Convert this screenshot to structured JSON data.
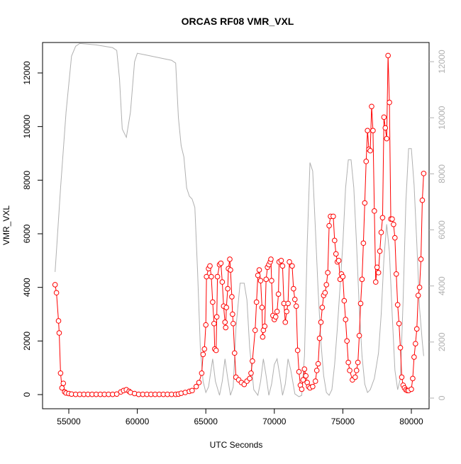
{
  "chart_data": {
    "type": "line",
    "title": "ORCAS RF08 VMR_VXL",
    "x_label": "UTC Seconds",
    "y_label": "VMR_VXL",
    "xlim": [
      53085,
      81294
    ],
    "xticks": [
      55000,
      60000,
      65000,
      70000,
      75000,
      80000
    ],
    "ylim": [
      -528,
      13136
    ],
    "yticks": [
      0,
      2000,
      4000,
      6000,
      8000,
      10000,
      12000
    ],
    "y2lim": [
      -380,
      12684
    ],
    "y2ticks": [
      0,
      2000,
      4000,
      6000,
      8000,
      10000,
      12000
    ],
    "y2_color": "#b0b0b0",
    "series": [
      {
        "color": "#b0b0b0",
        "axis": "y2",
        "markers": false,
        "x": [
          54000,
          54400,
          54800,
          55200,
          55500,
          55800,
          57000,
          58200,
          58500,
          58700,
          58900,
          59200,
          59500,
          59800,
          60000,
          60500,
          61500,
          62500,
          62800,
          63000,
          63200,
          63400,
          63600,
          63800,
          64000,
          64200,
          64400,
          64600,
          64800,
          65000,
          65200,
          65500,
          65700,
          66000,
          66200,
          66400,
          66600,
          66800,
          67000,
          67200,
          67500,
          67800,
          68000,
          68200,
          68500,
          68800,
          69000,
          69200,
          69400,
          69600,
          69800,
          70000,
          70200,
          70400,
          70600,
          70800,
          71000,
          71200,
          71500,
          71800,
          72000,
          72200,
          72400,
          72600,
          72800,
          73000,
          73200,
          73400,
          73600,
          73800,
          74000,
          74200,
          74400,
          74600,
          74800,
          75000,
          75200,
          75400,
          75600,
          75800,
          76000,
          76200,
          76400,
          76600,
          76800,
          77000,
          77300,
          77600,
          77800,
          78000,
          78200,
          78400,
          78600,
          78800,
          79000,
          79200,
          79400,
          79600,
          79800,
          80000,
          80200,
          80400,
          80600,
          80800,
          80900
        ],
        "values": [
          4500,
          7500,
          10200,
          12200,
          12550,
          12650,
          12600,
          12500,
          12400,
          11400,
          9600,
          9300,
          10200,
          12000,
          12300,
          12250,
          12150,
          12050,
          11950,
          10000,
          9000,
          8600,
          7500,
          7200,
          7100,
          6800,
          4500,
          1800,
          600,
          200,
          400,
          1400,
          600,
          100,
          600,
          1400,
          700,
          100,
          400,
          2500,
          4100,
          4100,
          3500,
          1800,
          300,
          100,
          600,
          1400,
          800,
          100,
          500,
          1200,
          1400,
          800,
          100,
          500,
          1400,
          1000,
          150,
          50,
          100,
          1500,
          5500,
          8400,
          8100,
          6000,
          3800,
          2000,
          800,
          200,
          100,
          300,
          1200,
          2500,
          4000,
          5500,
          7500,
          8500,
          8500,
          7500,
          5500,
          3200,
          1500,
          500,
          200,
          300,
          700,
          1600,
          3000,
          5000,
          6200,
          5200,
          3000,
          1000,
          300,
          700,
          3500,
          7000,
          8900,
          8900,
          7600,
          5500,
          3200,
          2000,
          1500
        ]
      },
      {
        "color": "#ff0000",
        "axis": "y",
        "markers": true,
        "x": [
          54000,
          54100,
          54250,
          54300,
          54400,
          54500,
          54600,
          54700,
          54800,
          55000,
          55200,
          55500,
          55800,
          56100,
          56400,
          56700,
          57000,
          57300,
          57600,
          57900,
          58200,
          58500,
          58800,
          59000,
          59200,
          59400,
          59500,
          59800,
          60100,
          60400,
          60700,
          61000,
          61300,
          61600,
          61900,
          62200,
          62500,
          62800,
          63000,
          63200,
          63500,
          63800,
          64000,
          64300,
          64500,
          64700,
          64800,
          64900,
          65000,
          65050,
          65200,
          65300,
          65400,
          65500,
          65600,
          65650,
          65750,
          65800,
          65850,
          66000,
          66100,
          66200,
          66300,
          66400,
          66450,
          66500,
          66600,
          66650,
          66750,
          66800,
          66900,
          66950,
          67000,
          67100,
          67200,
          67400,
          67600,
          67800,
          68000,
          68200,
          68300,
          68400,
          68600,
          68700,
          68800,
          68900,
          69000,
          69100,
          69150,
          69200,
          69300,
          69400,
          69500,
          69600,
          69700,
          69750,
          69800,
          69900,
          70000,
          70100,
          70200,
          70300,
          70350,
          70500,
          70600,
          70700,
          70800,
          70900,
          71000,
          71100,
          71300,
          71400,
          71500,
          71600,
          71700,
          71800,
          71900,
          72000,
          72100,
          72200,
          72300,
          72400,
          72500,
          72600,
          72800,
          73000,
          73100,
          73200,
          73300,
          73400,
          73500,
          73600,
          73700,
          73800,
          73900,
          74000,
          74100,
          74300,
          74400,
          74500,
          74600,
          74700,
          74800,
          74900,
          75000,
          75100,
          75200,
          75300,
          75400,
          75500,
          75700,
          75900,
          76000,
          76100,
          76200,
          76300,
          76400,
          76500,
          76600,
          76700,
          76800,
          76900,
          77000,
          77100,
          77200,
          77300,
          77400,
          77500,
          77600,
          77700,
          77800,
          77900,
          78000,
          78100,
          78200,
          78300,
          78400,
          78500,
          78600,
          78700,
          78800,
          78900,
          79000,
          79100,
          79200,
          79300,
          79400,
          79500,
          79600,
          79700,
          79800,
          80000,
          80100,
          80200,
          80300,
          80400,
          80500,
          80600,
          80700,
          80800,
          80900
        ],
        "values": [
          4100,
          3800,
          2750,
          2300,
          800,
          250,
          420,
          100,
          60,
          40,
          20,
          10,
          10,
          10,
          10,
          10,
          10,
          10,
          10,
          10,
          10,
          20,
          100,
          150,
          180,
          120,
          80,
          40,
          10,
          10,
          10,
          10,
          10,
          10,
          10,
          10,
          10,
          10,
          20,
          50,
          80,
          120,
          150,
          300,
          450,
          800,
          1500,
          1700,
          2600,
          4400,
          4700,
          4800,
          4400,
          3450,
          2650,
          1700,
          1650,
          2900,
          4400,
          4850,
          4900,
          4200,
          3300,
          2700,
          2500,
          3250,
          3950,
          4700,
          5050,
          4650,
          3650,
          3000,
          2650,
          1550,
          650,
          550,
          450,
          380,
          500,
          600,
          800,
          1250,
          2400,
          3450,
          4450,
          4650,
          4250,
          3250,
          2150,
          2400,
          2550,
          4300,
          4750,
          4850,
          4950,
          5050,
          4250,
          2950,
          2800,
          2900,
          3100,
          3750,
          4950,
          5000,
          4800,
          3400,
          2700,
          3100,
          3400,
          4950,
          4800,
          3950,
          3550,
          3300,
          1650,
          850,
          350,
          200,
          550,
          950,
          700,
          450,
          300,
          250,
          300,
          500,
          900,
          1150,
          2100,
          2700,
          3250,
          3700,
          3800,
          4100,
          4550,
          6300,
          6650,
          6650,
          5750,
          5250,
          4950,
          5000,
          4300,
          4500,
          4400,
          3500,
          2800,
          2000,
          1200,
          900,
          550,
          650,
          900,
          1200,
          2200,
          3400,
          4300,
          5650,
          7150,
          8700,
          9850,
          9150,
          9100,
          10750,
          9850,
          6850,
          4200,
          4750,
          4550,
          5350,
          6050,
          6600,
          10350,
          9950,
          9550,
          12650,
          10900,
          6550,
          6550,
          6350,
          5850,
          4500,
          3350,
          2650,
          1750,
          650,
          350,
          250,
          180,
          150,
          150,
          200,
          600,
          1400,
          1900,
          2450,
          3700,
          4000,
          5050,
          7250,
          8250
        ]
      }
    ]
  }
}
